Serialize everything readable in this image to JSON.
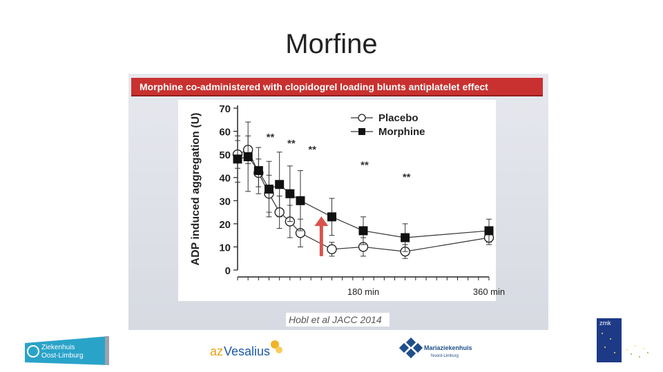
{
  "slide": {
    "title": "Morfine"
  },
  "figure": {
    "banner": "Morphine co-administered with clopidogrel loading blunts antiplatelet effect",
    "citation": "Hobl et al JACC 2014",
    "colors": {
      "banner": "#c8312f",
      "arrow": "#d9534f",
      "panel": "#e2e5eb"
    }
  },
  "chart_data": {
    "type": "line",
    "title": "",
    "ylabel": "ADP induced aggregation (U)",
    "xlabel": "",
    "ylim": [
      0,
      70
    ],
    "yticks": [
      "0",
      "10",
      "20",
      "30",
      "40",
      "50",
      "60",
      "70"
    ],
    "xtick_labels": [
      {
        "x": 180,
        "label": "180 min"
      },
      {
        "x": 360,
        "label": "360 min"
      }
    ],
    "x": [
      0,
      15,
      30,
      45,
      60,
      75,
      90,
      105,
      135,
      180,
      240,
      360
    ],
    "series": [
      {
        "name": "Placebo",
        "marker": "open-circle",
        "values": [
          50,
          52,
          42,
          33,
          25,
          21,
          16,
          null,
          9,
          10,
          8,
          14
        ],
        "err": [
          6,
          6,
          6,
          8,
          7,
          7,
          6,
          null,
          3,
          4,
          3,
          3
        ]
      },
      {
        "name": "Morphine",
        "marker": "filled-square",
        "values": [
          48,
          49,
          43,
          35,
          37,
          33,
          30,
          null,
          23,
          17,
          14,
          17
        ],
        "err": [
          10,
          15,
          10,
          12,
          14,
          12,
          13,
          null,
          8,
          6,
          6,
          5
        ]
      }
    ],
    "significance": [
      {
        "x": 45,
        "label": "**"
      },
      {
        "x": 75,
        "label": "**"
      },
      {
        "x": 105,
        "label": "**"
      },
      {
        "x": 180,
        "label": "**"
      },
      {
        "x": 240,
        "label": "**"
      }
    ],
    "annotation": {
      "type": "arrow",
      "x": 120,
      "from": 6,
      "to": 22
    },
    "legend": {
      "position": "top-right"
    }
  },
  "logos": {
    "zol": {
      "line1": "Ziekenhuis",
      "line2": "Oost-Limburg"
    },
    "vesalius": {
      "prefix": "az",
      "name": "Vesalius"
    },
    "maria": {
      "name": "Mariaziekenhuis",
      "sub": "Noord-Limburg"
    },
    "zmk": {
      "text": "zmk"
    }
  }
}
